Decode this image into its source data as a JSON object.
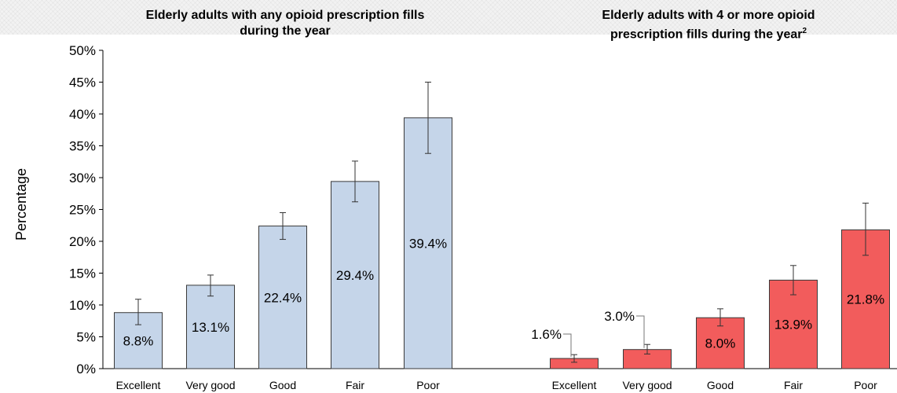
{
  "y_axis": {
    "label": "Percentage",
    "ticks": [
      "0%",
      "5%",
      "10%",
      "15%",
      "20%",
      "25%",
      "30%",
      "35%",
      "40%",
      "45%",
      "50%"
    ]
  },
  "chart_data": [
    {
      "type": "bar",
      "title_lines": [
        "Elderly adults with any opioid prescription fills",
        "during the year"
      ],
      "title_superscript": "",
      "categories": [
        "Excellent",
        "Very good",
        "Good",
        "Fair",
        "Poor"
      ],
      "values": [
        8.8,
        13.1,
        22.4,
        29.4,
        39.4
      ],
      "value_labels": [
        "8.8%",
        "13.1%",
        "22.4%",
        "29.4%",
        "39.4%"
      ],
      "error_low": [
        6.9,
        11.4,
        20.3,
        26.2,
        33.8
      ],
      "error_high": [
        10.9,
        14.7,
        24.5,
        32.6,
        45.0
      ],
      "ylabel": "Percentage",
      "ylim": [
        0,
        50
      ],
      "bar_color": "#c5d5e9",
      "grid": false
    },
    {
      "type": "bar",
      "title_lines": [
        "Elderly adults with 4 or more opioid",
        "prescription fills during the year"
      ],
      "title_superscript": "2",
      "categories": [
        "Excellent",
        "Very good",
        "Good",
        "Fair",
        "Poor"
      ],
      "values": [
        1.6,
        3.0,
        8.0,
        13.9,
        21.8
      ],
      "value_labels": [
        "1.6%",
        "3.0%",
        "8.0%",
        "13.9%",
        "21.8%"
      ],
      "error_low": [
        1.0,
        2.3,
        6.7,
        11.6,
        17.8
      ],
      "error_high": [
        2.2,
        3.8,
        9.4,
        16.2,
        26.0
      ],
      "ylabel": "Percentage",
      "ylim": [
        0,
        50
      ],
      "bar_color": "#f25c5c",
      "grid": false
    }
  ]
}
